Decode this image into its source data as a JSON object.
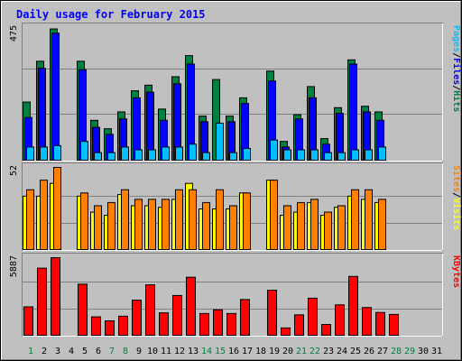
{
  "title": "Daily usage for February 2015",
  "colors": {
    "background": "#c0c0c0",
    "title": "#0000ff",
    "hits": "#008040",
    "files": "#0000ff",
    "pages": "#00c0ff",
    "visits": "#ffff00",
    "sites": "#ff8000",
    "kbytes": "#ff0000",
    "weekend_day_label": "#008040",
    "weekday_day_label": "#000000",
    "grid": "#808080"
  },
  "chart_data": [
    {
      "type": "bar",
      "panel": "hits-files-pages",
      "categories": [
        "1",
        "2",
        "3",
        "4",
        "5",
        "6",
        "7",
        "8",
        "9",
        "10",
        "11",
        "12",
        "13",
        "14",
        "15",
        "16",
        "17",
        "18",
        "19",
        "20",
        "21",
        "22",
        "23",
        "24",
        "25",
        "26",
        "27",
        "28",
        "29",
        "30",
        "31"
      ],
      "max_label": "475",
      "ylim": [
        0,
        475
      ],
      "legend": [
        {
          "label": "Pages",
          "color": "#00c0ff"
        },
        {
          "label": "/",
          "color": "#000000"
        },
        {
          "label": "Files",
          "color": "#0000ff"
        },
        {
          "label": "/",
          "color": "#000000"
        },
        {
          "label": "Hits",
          "color": "#008040"
        }
      ],
      "series": [
        {
          "name": "Hits",
          "color": "#008040",
          "values": [
            210,
            355,
            470,
            0,
            355,
            145,
            115,
            175,
            250,
            270,
            185,
            300,
            375,
            160,
            290,
            160,
            225,
            0,
            320,
            70,
            165,
            265,
            80,
            190,
            360,
            195,
            175,
            0,
            0,
            0,
            0
          ]
        },
        {
          "name": "Files",
          "color": "#0000ff",
          "values": [
            155,
            330,
            455,
            0,
            325,
            120,
            95,
            150,
            225,
            245,
            145,
            275,
            345,
            140,
            0,
            140,
            205,
            0,
            285,
            50,
            150,
            225,
            60,
            170,
            345,
            175,
            145,
            0,
            0,
            0,
            0
          ]
        },
        {
          "name": "Pages",
          "color": "#00c0ff",
          "values": [
            50,
            50,
            55,
            0,
            70,
            30,
            30,
            50,
            40,
            40,
            50,
            50,
            60,
            30,
            135,
            30,
            45,
            0,
            75,
            40,
            40,
            40,
            30,
            30,
            40,
            40,
            50,
            0,
            0,
            0,
            0
          ]
        }
      ]
    },
    {
      "type": "bar",
      "panel": "visits-sites",
      "categories": [
        "1",
        "2",
        "3",
        "4",
        "5",
        "6",
        "7",
        "8",
        "9",
        "10",
        "11",
        "12",
        "13",
        "14",
        "15",
        "16",
        "17",
        "18",
        "19",
        "20",
        "21",
        "22",
        "23",
        "24",
        "25",
        "26",
        "27",
        "28",
        "29",
        "30",
        "31"
      ],
      "max_label": "52",
      "ylim": [
        0,
        52
      ],
      "legend": [
        {
          "label": "Sites",
          "color": "#ff8000"
        },
        {
          "label": "/",
          "color": "#000000"
        },
        {
          "label": "Visits",
          "color": "#ffff00"
        }
      ],
      "series": [
        {
          "name": "Sites",
          "color": "#ff8000",
          "values": [
            38,
            44,
            52,
            0,
            36,
            28,
            30,
            38,
            32,
            32,
            32,
            38,
            38,
            30,
            38,
            28,
            36,
            0,
            44,
            28,
            30,
            32,
            24,
            28,
            38,
            38,
            32,
            0,
            0,
            0,
            0
          ]
        },
        {
          "name": "Visits",
          "color": "#ffff00",
          "values": [
            34,
            34,
            42,
            0,
            34,
            24,
            22,
            35,
            28,
            28,
            27,
            32,
            42,
            26,
            26,
            26,
            36,
            0,
            44,
            22,
            24,
            30,
            22,
            27,
            34,
            32,
            30,
            0,
            0,
            0,
            0
          ]
        }
      ]
    },
    {
      "type": "bar",
      "panel": "kbytes",
      "categories": [
        "1",
        "2",
        "3",
        "4",
        "5",
        "6",
        "7",
        "8",
        "9",
        "10",
        "11",
        "12",
        "13",
        "14",
        "15",
        "16",
        "17",
        "18",
        "19",
        "20",
        "21",
        "22",
        "23",
        "24",
        "25",
        "26",
        "27",
        "28",
        "29",
        "30",
        "31"
      ],
      "max_label": "5887",
      "ylim": [
        0,
        5887
      ],
      "legend": [
        {
          "label": "KBytes",
          "color": "#ff0000"
        }
      ],
      "series": [
        {
          "name": "KBytes",
          "color": "#ff0000",
          "values": [
            2200,
            5100,
            5887,
            0,
            3900,
            1450,
            1150,
            1500,
            2700,
            3850,
            1750,
            3050,
            4420,
            1700,
            1980,
            1700,
            2750,
            0,
            3450,
            620,
            1600,
            2850,
            880,
            2350,
            4480,
            2150,
            1780,
            1630,
            0,
            0,
            0
          ]
        }
      ]
    }
  ],
  "day_labels": [
    {
      "text": "1",
      "weekend": true
    },
    {
      "text": "2",
      "weekend": false
    },
    {
      "text": "3",
      "weekend": false
    },
    {
      "text": "4",
      "weekend": false
    },
    {
      "text": "5",
      "weekend": false
    },
    {
      "text": "6",
      "weekend": false
    },
    {
      "text": "7",
      "weekend": true
    },
    {
      "text": "8",
      "weekend": true
    },
    {
      "text": "9",
      "weekend": false
    },
    {
      "text": "10",
      "weekend": false
    },
    {
      "text": "11",
      "weekend": false
    },
    {
      "text": "12",
      "weekend": false
    },
    {
      "text": "13",
      "weekend": false
    },
    {
      "text": "14",
      "weekend": true
    },
    {
      "text": "15",
      "weekend": true
    },
    {
      "text": "16",
      "weekend": false
    },
    {
      "text": "17",
      "weekend": false
    },
    {
      "text": "18",
      "weekend": false
    },
    {
      "text": "19",
      "weekend": false
    },
    {
      "text": "20",
      "weekend": false
    },
    {
      "text": "21",
      "weekend": true
    },
    {
      "text": "22",
      "weekend": true
    },
    {
      "text": "23",
      "weekend": false
    },
    {
      "text": "24",
      "weekend": false
    },
    {
      "text": "25",
      "weekend": false
    },
    {
      "text": "26",
      "weekend": false
    },
    {
      "text": "27",
      "weekend": false
    },
    {
      "text": "28",
      "weekend": true
    },
    {
      "text": "29",
      "weekend": true
    },
    {
      "text": "30",
      "weekend": false
    },
    {
      "text": "31",
      "weekend": false
    }
  ]
}
